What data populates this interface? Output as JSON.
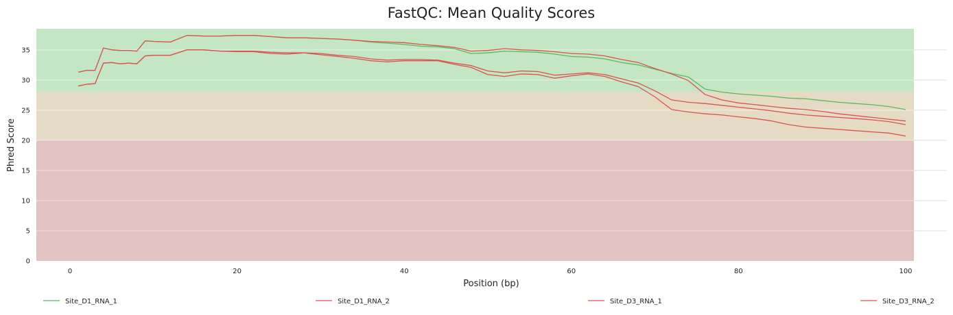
{
  "chart_data": {
    "type": "line",
    "title": "FastQC: Mean Quality Scores",
    "xlabel": "Position (bp)",
    "ylabel": "Phred Score",
    "xlim": [
      -4,
      105
    ],
    "ylim": [
      0,
      38.5
    ],
    "xticks": [
      0,
      20,
      40,
      60,
      80,
      100
    ],
    "yticks": [
      0,
      5,
      10,
      15,
      20,
      25,
      30,
      35
    ],
    "grid": true,
    "legend_position": "bottom",
    "bands": [
      {
        "from": 28,
        "to": 38.5,
        "color": "#c4e6c4"
      },
      {
        "from": 20,
        "to": 28,
        "color": "#e5dbc5"
      },
      {
        "from": 0,
        "to": 20,
        "color": "#e3c2c2"
      }
    ],
    "x": [
      1,
      2,
      3,
      4,
      5,
      6,
      7,
      8,
      9,
      10,
      12,
      14,
      16,
      18,
      20,
      22,
      24,
      26,
      28,
      30,
      32,
      34,
      36,
      38,
      40,
      42,
      44,
      46,
      48,
      50,
      52,
      54,
      56,
      58,
      60,
      62,
      64,
      66,
      68,
      70,
      72,
      74,
      76,
      78,
      80,
      82,
      84,
      86,
      88,
      90,
      92,
      94,
      96,
      98,
      100
    ],
    "series": [
      {
        "name": "Site_D1_RNA_1",
        "color": "#5cb85c",
        "values": [
          31.3,
          31.6,
          31.6,
          35.3,
          35.0,
          34.9,
          34.9,
          34.8,
          36.5,
          36.4,
          36.3,
          37.4,
          37.3,
          37.3,
          37.4,
          37.4,
          37.2,
          37.0,
          37.0,
          36.9,
          36.8,
          36.6,
          36.3,
          36.1,
          35.9,
          35.6,
          35.5,
          35.2,
          34.4,
          34.5,
          34.8,
          34.7,
          34.6,
          34.3,
          33.9,
          33.8,
          33.5,
          32.9,
          32.5,
          31.8,
          31.1,
          30.5,
          28.5,
          28.0,
          27.7,
          27.5,
          27.3,
          27.0,
          26.9,
          26.6,
          26.3,
          26.1,
          25.9,
          25.6,
          25.1
        ]
      },
      {
        "name": "Site_D1_RNA_2",
        "color": "#d9534f",
        "values": [
          31.3,
          31.6,
          31.6,
          35.3,
          35.0,
          34.9,
          34.9,
          34.8,
          36.5,
          36.4,
          36.3,
          37.4,
          37.3,
          37.3,
          37.4,
          37.4,
          37.2,
          37.0,
          37.0,
          36.9,
          36.8,
          36.6,
          36.4,
          36.3,
          36.2,
          35.9,
          35.7,
          35.4,
          34.8,
          34.9,
          35.2,
          35.0,
          34.9,
          34.7,
          34.4,
          34.3,
          34.0,
          33.4,
          32.9,
          31.9,
          31.0,
          29.9,
          27.6,
          26.7,
          26.2,
          25.9,
          25.6,
          25.3,
          25.1,
          24.8,
          24.4,
          24.1,
          23.8,
          23.5,
          23.2
        ]
      },
      {
        "name": "Site_D3_RNA_1",
        "color": "#d9534f",
        "values": [
          29.0,
          29.3,
          29.4,
          32.8,
          32.9,
          32.7,
          32.8,
          32.7,
          34.0,
          34.1,
          34.1,
          35.0,
          35.0,
          34.8,
          34.8,
          34.8,
          34.6,
          34.5,
          34.5,
          34.4,
          34.1,
          33.9,
          33.5,
          33.3,
          33.4,
          33.4,
          33.3,
          32.8,
          32.4,
          31.5,
          31.2,
          31.5,
          31.4,
          30.8,
          31.0,
          31.2,
          30.9,
          30.2,
          29.5,
          28.2,
          26.7,
          26.3,
          26.1,
          25.8,
          25.5,
          25.2,
          24.9,
          24.5,
          24.2,
          24.0,
          23.8,
          23.6,
          23.4,
          23.1,
          22.6
        ]
      },
      {
        "name": "Site_D3_RNA_2",
        "color": "#d9534f",
        "values": [
          29.0,
          29.3,
          29.4,
          32.8,
          32.9,
          32.7,
          32.8,
          32.7,
          34.0,
          34.1,
          34.1,
          35.0,
          35.0,
          34.8,
          34.7,
          34.7,
          34.4,
          34.3,
          34.5,
          34.2,
          33.9,
          33.6,
          33.2,
          33.0,
          33.2,
          33.2,
          33.2,
          32.6,
          32.1,
          30.9,
          30.6,
          31.0,
          30.9,
          30.3,
          30.7,
          31.0,
          30.6,
          29.7,
          28.9,
          27.2,
          25.1,
          24.7,
          24.4,
          24.2,
          23.9,
          23.6,
          23.2,
          22.6,
          22.2,
          22.0,
          21.8,
          21.6,
          21.4,
          21.2,
          20.7
        ]
      }
    ]
  }
}
